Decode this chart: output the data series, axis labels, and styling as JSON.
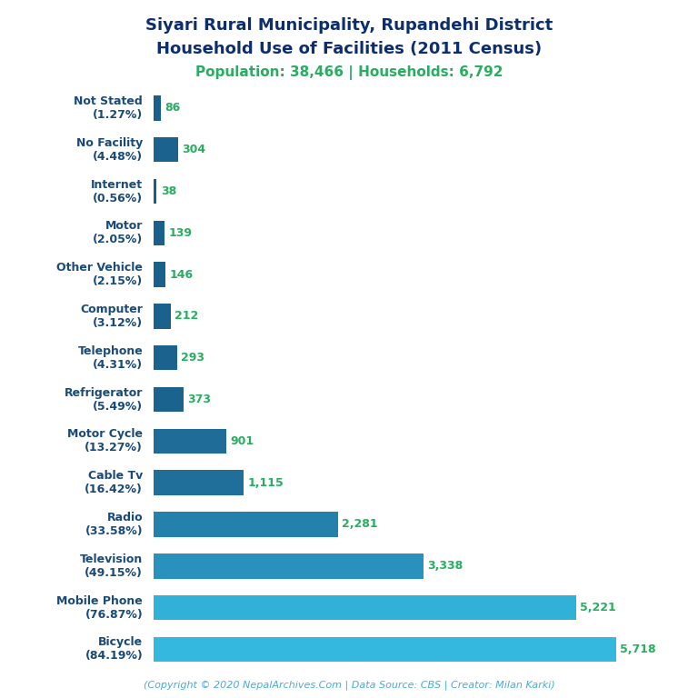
{
  "title_line1": "Siyari Rural Municipality, Rupandehi District",
  "title_line2": "Household Use of Facilities (2011 Census)",
  "subtitle": "Population: 38,466 | Households: 6,792",
  "footer": "(Copyright © 2020 NepalArchives.Com | Data Source: CBS | Creator: Milan Karki)",
  "categories": [
    "Not Stated\n(1.27%)",
    "No Facility\n(4.48%)",
    "Internet\n(0.56%)",
    "Motor\n(2.05%)",
    "Other Vehicle\n(2.15%)",
    "Computer\n(3.12%)",
    "Telephone\n(4.31%)",
    "Refrigerator\n(5.49%)",
    "Motor Cycle\n(13.27%)",
    "Cable Tv\n(16.42%)",
    "Radio\n(33.58%)",
    "Television\n(49.15%)",
    "Mobile Phone\n(76.87%)",
    "Bicycle\n(84.19%)"
  ],
  "values": [
    86,
    304,
    38,
    139,
    146,
    212,
    293,
    373,
    901,
    1115,
    2281,
    3338,
    5221,
    5718
  ],
  "title_color": "#0d2e6e",
  "subtitle_color": "#27ae60",
  "footer_color": "#4aabdb",
  "label_color": "#27ae60",
  "ylabel_color": "#1a4a7a",
  "xlim": [
    0,
    6300
  ],
  "value_labels": [
    "86",
    "304",
    "38",
    "139",
    "146",
    "212",
    "293",
    "373",
    "901",
    "1,115",
    "2,281",
    "3,338",
    "5,221",
    "5,718"
  ]
}
